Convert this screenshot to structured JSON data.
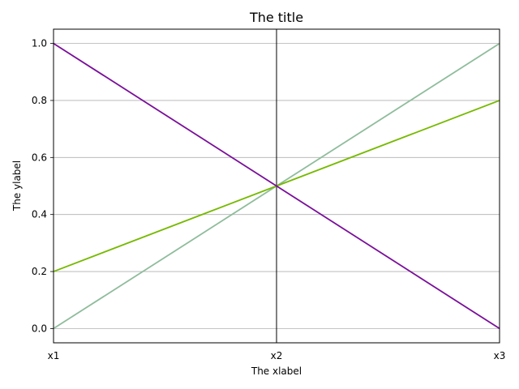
{
  "chart_data": {
    "type": "line",
    "title": "The title",
    "xlabel": "The xlabel",
    "ylabel": "The ylabel",
    "categories": [
      "x1",
      "x2",
      "x3"
    ],
    "ylim": [
      -0.05,
      1.05
    ],
    "yticks": [
      "0.0",
      "0.2",
      "0.4",
      "0.6",
      "0.8",
      "1.0"
    ],
    "grid": "horizontal",
    "legend": "none",
    "series": [
      {
        "values": [
          0.0,
          0.5,
          1.0
        ],
        "color": "#8fbc9b"
      },
      {
        "values": [
          0.2,
          0.5,
          0.8
        ],
        "color": "#76b900"
      },
      {
        "values": [
          1.0,
          0.5,
          0.0
        ],
        "color": "#7a0f9a"
      }
    ]
  }
}
